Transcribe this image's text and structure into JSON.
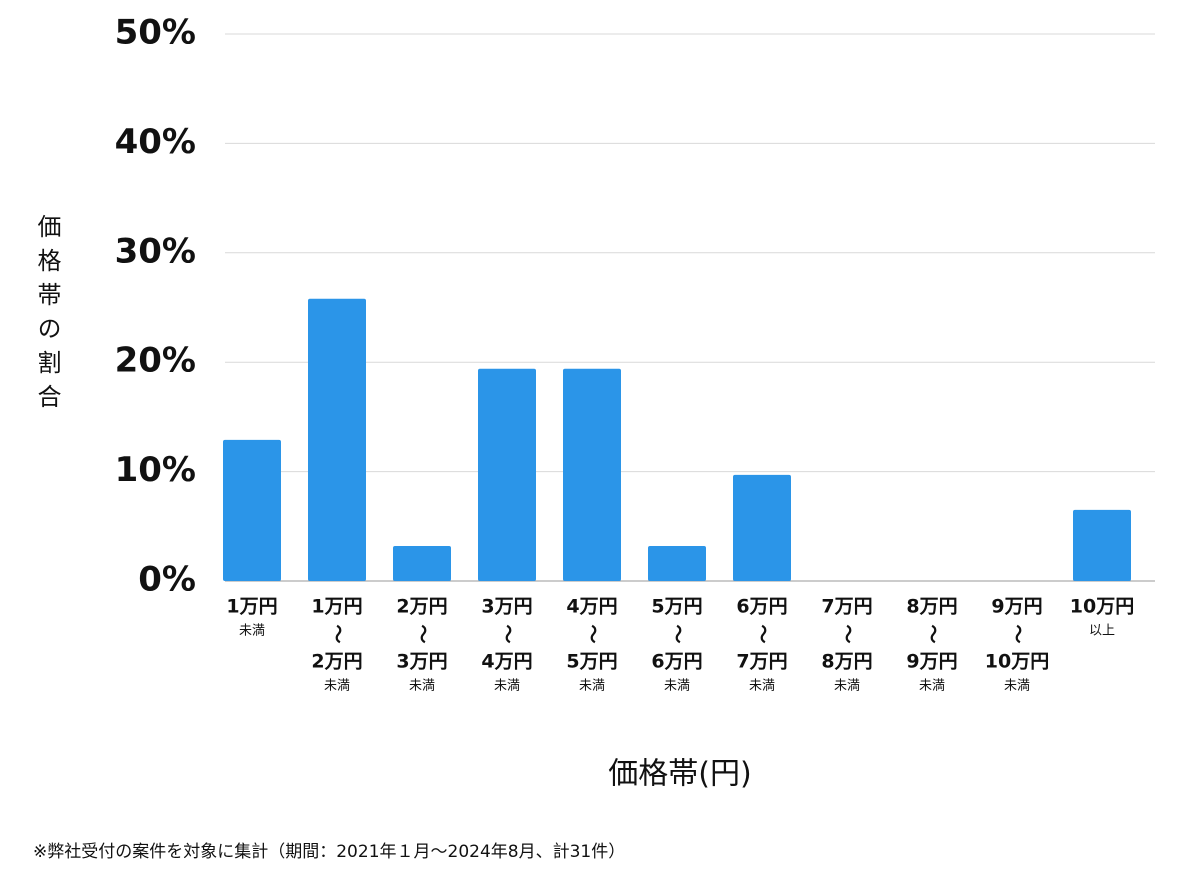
{
  "chart_data": {
    "type": "bar",
    "y_label": "価格帯の割合",
    "x_label": "価格帯(円)",
    "footnote": "※弊社受付の案件を対象に集計（期間：2021年１月〜2024年8月、計31件）",
    "categories": [
      [
        "1万円",
        "未満"
      ],
      [
        "1万円",
        "〜",
        "2万円",
        "未満"
      ],
      [
        "2万円",
        "〜",
        "3万円",
        "未満"
      ],
      [
        "3万円",
        "〜",
        "4万円",
        "未満"
      ],
      [
        "4万円",
        "〜",
        "5万円",
        "未満"
      ],
      [
        "5万円",
        "〜",
        "6万円",
        "未満"
      ],
      [
        "6万円",
        "〜",
        "7万円",
        "未満"
      ],
      [
        "7万円",
        "〜",
        "8万円",
        "未満"
      ],
      [
        "8万円",
        "〜",
        "9万円",
        "未満"
      ],
      [
        "9万円",
        "〜",
        "10万円",
        "未満"
      ],
      [
        "10万円",
        "以上"
      ]
    ],
    "values": [
      12.9,
      25.8,
      3.2,
      19.4,
      19.4,
      3.2,
      9.7,
      0,
      0,
      0,
      6.5
    ],
    "color": "#2b95e8",
    "ylim": [
      0,
      50
    ],
    "yticks": [
      {
        "value": 0,
        "label": "0%"
      },
      {
        "value": 10,
        "label": "10%"
      },
      {
        "value": 20,
        "label": "20%"
      },
      {
        "value": 30,
        "label": "30%"
      },
      {
        "value": 40,
        "label": "40%"
      },
      {
        "value": 50,
        "label": "50%"
      }
    ],
    "grid": true
  }
}
